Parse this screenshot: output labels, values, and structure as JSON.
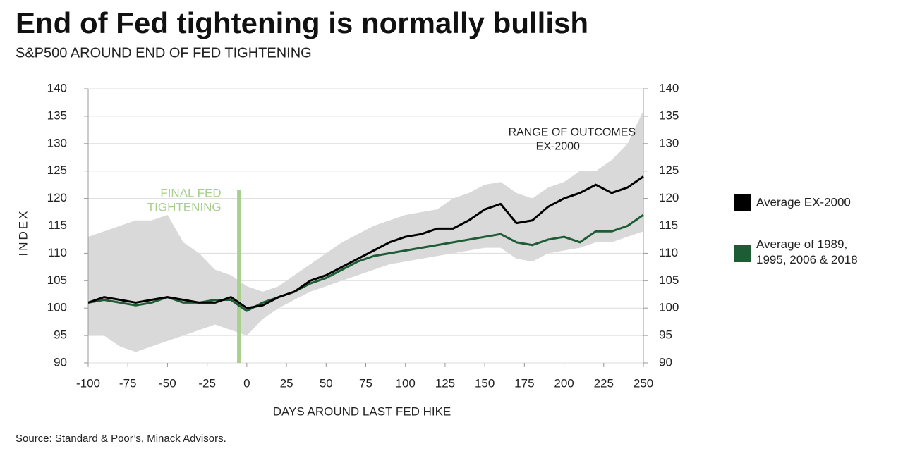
{
  "chart_data": {
    "type": "line",
    "title": "End of Fed tightening is normally bullish",
    "subtitle": "S&P500 AROUND END OF FED TIGHTENING",
    "ylabel": "INDEX",
    "xlabel": "DAYS AROUND LAST FED HIKE",
    "source": "Source:  Standard & Poor’s, Minack Advisors.",
    "x": [
      -100,
      -90,
      -80,
      -70,
      -60,
      -50,
      -40,
      -30,
      -20,
      -10,
      0,
      10,
      20,
      30,
      40,
      50,
      60,
      70,
      80,
      90,
      100,
      110,
      120,
      130,
      140,
      150,
      160,
      170,
      180,
      190,
      200,
      210,
      220,
      230,
      240,
      250
    ],
    "series": [
      {
        "name": "Average EX-2000",
        "color": "#000000",
        "values": [
          101,
          102,
          101.5,
          101,
          101.5,
          102,
          101.5,
          101,
          101,
          102,
          100,
          100.5,
          102,
          103,
          105,
          106,
          107.5,
          109,
          110.5,
          112,
          113,
          113.5,
          114.5,
          114.5,
          116,
          118,
          119,
          115.5,
          116,
          118.5,
          120,
          121,
          122.5,
          121,
          122,
          124
        ]
      },
      {
        "name": "Average of 1989, 1995, 2006 & 2018",
        "color": "#1e5c36",
        "values": [
          101,
          101.5,
          101,
          100.5,
          101,
          102,
          101,
          101,
          101.5,
          101.5,
          99.5,
          101,
          102,
          103,
          104.5,
          105.5,
          107,
          108.5,
          109.5,
          110,
          110.5,
          111,
          111.5,
          112,
          112.5,
          113,
          113.5,
          112,
          111.5,
          112.5,
          113,
          112,
          114,
          114,
          115,
          117
        ]
      }
    ],
    "range": {
      "label": [
        "RANGE OF OUTCOMES",
        "EX-2000"
      ],
      "label_x": 205,
      "label_y": 132,
      "color": "#d9d9d9",
      "high": [
        113,
        114,
        115,
        116,
        116,
        117,
        112,
        110,
        107,
        106,
        104,
        103,
        104,
        106,
        108,
        110,
        112,
        113.5,
        115,
        116,
        117,
        117.5,
        118,
        120,
        121,
        122.5,
        123,
        121,
        120,
        122,
        123,
        125,
        125,
        127,
        130,
        136
      ],
      "low": [
        95,
        95,
        93,
        92,
        93,
        94,
        95,
        96,
        97,
        96,
        95,
        98,
        100,
        101.5,
        103,
        104,
        105,
        106,
        107,
        108,
        108.5,
        109,
        109.5,
        110,
        110.5,
        111,
        111,
        109,
        108.5,
        110,
        110.5,
        111,
        112,
        112,
        113,
        114
      ]
    },
    "marker": {
      "label": [
        "FINAL FED",
        "TIGHTENING"
      ],
      "x": -5,
      "y_top": 121.5,
      "color": "#a9cf8f"
    },
    "xlim": [
      -100,
      250
    ],
    "xticks": [
      -100,
      -75,
      -50,
      -25,
      0,
      25,
      50,
      75,
      100,
      125,
      150,
      175,
      200,
      225,
      250
    ],
    "ylim": [
      90,
      140
    ],
    "yticks": [
      90,
      95,
      100,
      105,
      110,
      115,
      120,
      125,
      130,
      135,
      140
    ],
    "y2lim": [
      90,
      140
    ],
    "y2ticks": [
      90,
      95,
      100,
      105,
      110,
      115,
      120,
      125,
      130,
      135,
      140
    ],
    "grid": true,
    "legend": "right"
  }
}
